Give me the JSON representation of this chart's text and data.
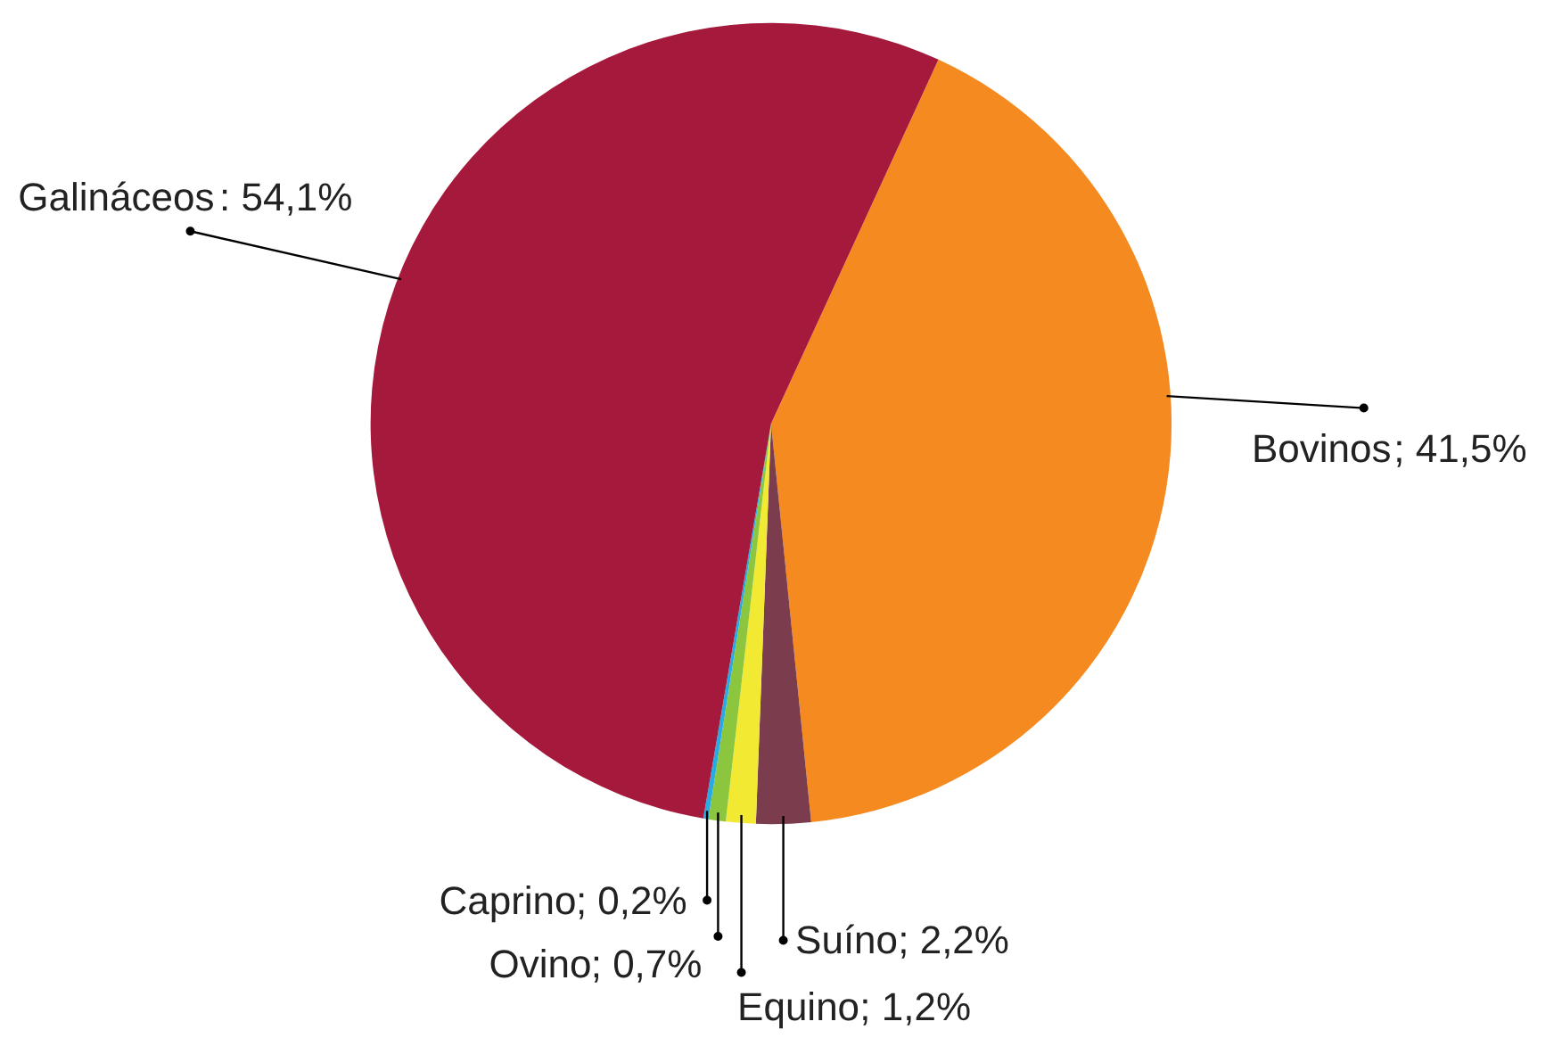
{
  "chart_data": {
    "type": "pie",
    "categories": [
      "Bovinos",
      "Suíno",
      "Equino",
      "Ovino",
      "Caprino",
      "Galináceos"
    ],
    "values": [
      41.5,
      2.2,
      1.2,
      0.7,
      0.2,
      54.1
    ],
    "colors": [
      "#f58b20",
      "#7b3d4e",
      "#f1e932",
      "#8cc63f",
      "#29abe2",
      "#a5193c"
    ],
    "value_labels": [
      "; 41,5%",
      "; 2,2%",
      "; 1,2%",
      "; 0,7%",
      "; 0,2%",
      ": 54,1%"
    ]
  }
}
